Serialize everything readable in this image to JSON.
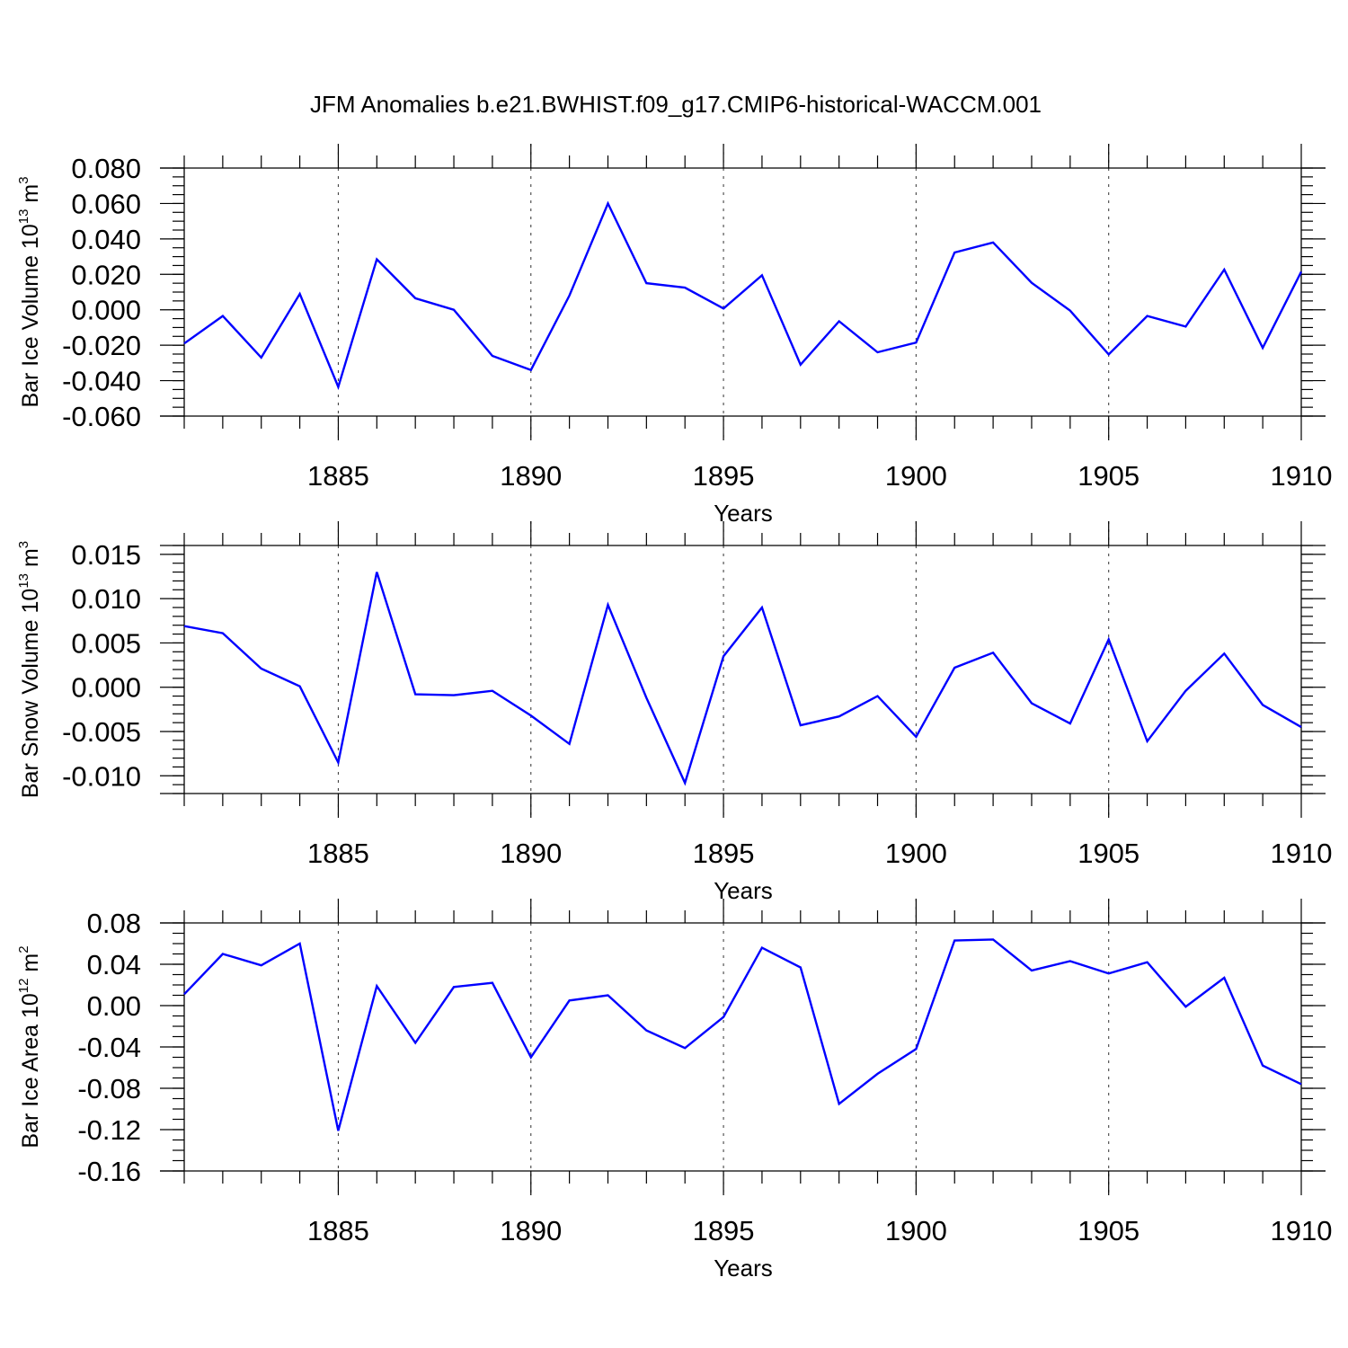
{
  "title": "JFM Anomalies b.e21.BWHIST.f09_g17.CMIP6-historical-WACCM.001",
  "series_color": "#0000ff",
  "chart_data": [
    {
      "type": "line",
      "ylabel": {
        "prefix": "Bar Ice Volume 10",
        "sup1": "13",
        "mid": " m",
        "sup2": "3"
      },
      "xlabel": "Years",
      "xlim": [
        1881,
        1910
      ],
      "ylim": [
        -0.06,
        0.08
      ],
      "xticks": [
        1885,
        1890,
        1895,
        1900,
        1905,
        1910
      ],
      "xtick_labels": [
        "1885",
        "1890",
        "1895",
        "1900",
        "1905",
        "1910"
      ],
      "yticks": [
        -0.06,
        -0.04,
        -0.02,
        0.0,
        0.02,
        0.04,
        0.06,
        0.08
      ],
      "ytick_labels": [
        "-0.060",
        "-0.040",
        "-0.020",
        "0.000",
        "0.020",
        "0.040",
        "0.060",
        "0.080"
      ],
      "yminor": 0.005,
      "x": [
        1881,
        1882,
        1883,
        1884,
        1885,
        1886,
        1887,
        1888,
        1889,
        1890,
        1891,
        1892,
        1893,
        1894,
        1895,
        1896,
        1897,
        1898,
        1899,
        1900,
        1901,
        1902,
        1903,
        1904,
        1905,
        1906,
        1907,
        1908,
        1909,
        1910
      ],
      "values": [
        -0.019,
        -0.0035,
        -0.027,
        0.009,
        -0.0435,
        0.0285,
        0.0065,
        0.0,
        -0.026,
        -0.034,
        0.008,
        0.06,
        0.015,
        0.0125,
        0.0007,
        0.0195,
        -0.031,
        -0.0065,
        -0.024,
        -0.0185,
        0.0323,
        0.038,
        0.0152,
        -0.0005,
        -0.0252,
        -0.0035,
        -0.0095,
        0.0227,
        -0.0215,
        0.0215
      ]
    },
    {
      "type": "line",
      "ylabel": {
        "prefix": "Bar Snow Volume 10",
        "sup1": "13",
        "mid": " m",
        "sup2": "3"
      },
      "xlabel": "Years",
      "xlim": [
        1881,
        1910
      ],
      "ylim": [
        -0.012,
        0.016
      ],
      "xticks": [
        1885,
        1890,
        1895,
        1900,
        1905,
        1910
      ],
      "xtick_labels": [
        "1885",
        "1890",
        "1895",
        "1900",
        "1905",
        "1910"
      ],
      "yticks": [
        -0.01,
        -0.005,
        0.0,
        0.005,
        0.01,
        0.015
      ],
      "ytick_labels": [
        "-0.010",
        "-0.005",
        "0.000",
        "0.005",
        "0.010",
        "0.015"
      ],
      "yminor": 0.001,
      "x": [
        1881,
        1882,
        1883,
        1884,
        1885,
        1886,
        1887,
        1888,
        1889,
        1890,
        1891,
        1892,
        1893,
        1894,
        1895,
        1896,
        1897,
        1898,
        1899,
        1900,
        1901,
        1902,
        1903,
        1904,
        1905,
        1906,
        1907,
        1908,
        1909,
        1910
      ],
      "values": [
        0.0069,
        0.0061,
        0.0021,
        0.0001,
        -0.0085,
        0.013,
        -0.0008,
        -0.0009,
        -0.0004,
        -0.0032,
        -0.0064,
        0.0093,
        -0.0012,
        -0.0108,
        0.0035,
        0.009,
        -0.0043,
        -0.0033,
        -0.001,
        -0.0056,
        0.0022,
        0.0039,
        -0.0018,
        -0.0041,
        0.0054,
        -0.0061,
        -0.0004,
        0.0038,
        -0.002,
        -0.0045
      ]
    },
    {
      "type": "line",
      "ylabel": {
        "prefix": "Bar Ice Area 10",
        "sup1": "12",
        "mid": " m",
        "sup2": "2"
      },
      "xlabel": "Years",
      "xlim": [
        1881,
        1910
      ],
      "ylim": [
        -0.16,
        0.08
      ],
      "xticks": [
        1885,
        1890,
        1895,
        1900,
        1905,
        1910
      ],
      "xtick_labels": [
        "1885",
        "1890",
        "1895",
        "1900",
        "1905",
        "1910"
      ],
      "yticks": [
        -0.16,
        -0.12,
        -0.08,
        -0.04,
        0.0,
        0.04,
        0.08
      ],
      "ytick_labels": [
        "-0.16",
        "-0.12",
        "-0.08",
        "-0.04",
        "0.00",
        "0.04",
        "0.08"
      ],
      "yminor": 0.01,
      "x": [
        1881,
        1882,
        1883,
        1884,
        1885,
        1886,
        1887,
        1888,
        1889,
        1890,
        1891,
        1892,
        1893,
        1894,
        1895,
        1896,
        1897,
        1898,
        1899,
        1900,
        1901,
        1902,
        1903,
        1904,
        1905,
        1906,
        1907,
        1908,
        1909,
        1910
      ],
      "values": [
        0.011,
        0.05,
        0.039,
        0.06,
        -0.121,
        0.019,
        -0.036,
        0.018,
        0.022,
        -0.05,
        0.005,
        0.01,
        -0.024,
        -0.041,
        -0.011,
        0.056,
        0.037,
        -0.095,
        -0.066,
        -0.042,
        0.063,
        0.064,
        0.034,
        0.043,
        0.031,
        0.042,
        -0.001,
        0.027,
        -0.058,
        -0.076
      ]
    }
  ]
}
